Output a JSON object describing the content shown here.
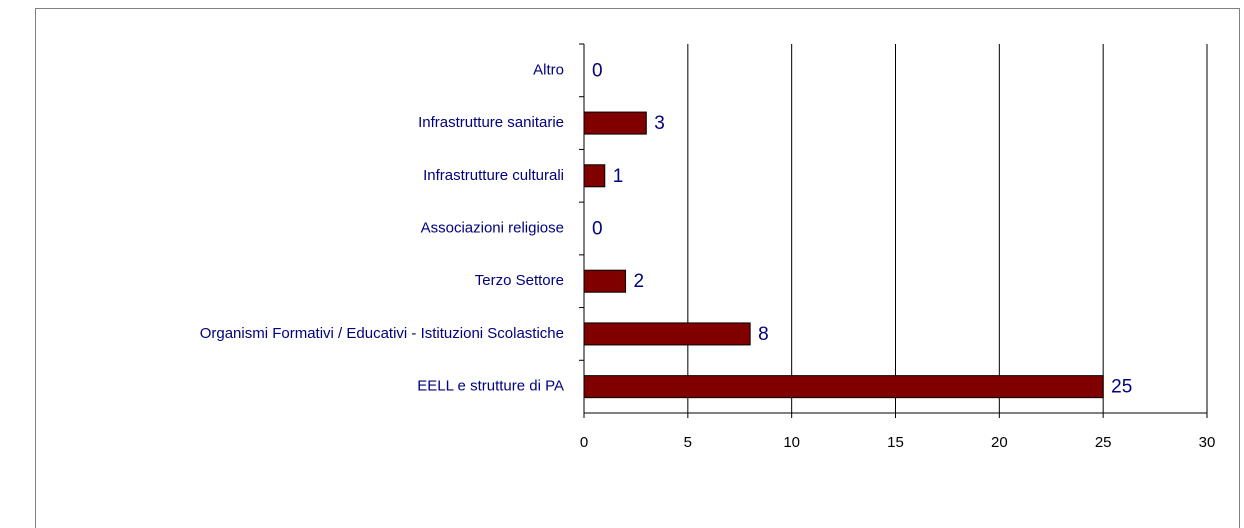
{
  "chart_data": {
    "type": "bar",
    "orientation": "horizontal",
    "categories": [
      "Altro",
      "Infrastrutture sanitarie",
      "Infrastrutture culturali",
      "Associazioni religiose",
      "Terzo Settore",
      "Organismi Formativi / Educativi - Istituzioni Scolastiche",
      "EELL e strutture di PA"
    ],
    "values": [
      0,
      3,
      1,
      0,
      2,
      8,
      25
    ],
    "color": "#800000",
    "xlim": [
      0,
      30
    ],
    "xticks": [
      0,
      5,
      10,
      15,
      20,
      25,
      30
    ],
    "grid": true
  }
}
